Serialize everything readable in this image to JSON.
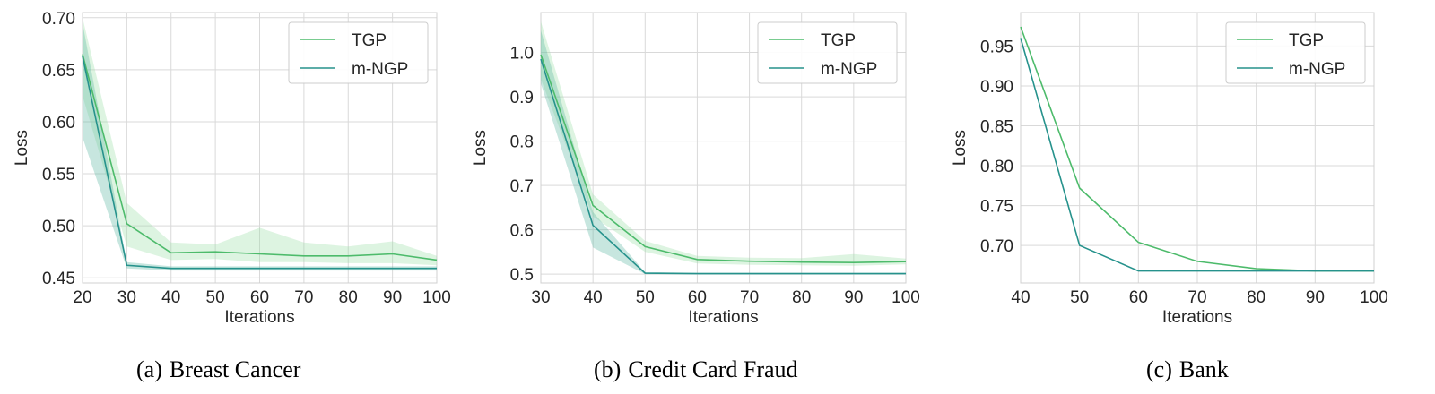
{
  "chart_data": [
    {
      "type": "line",
      "caption_label": "(a)",
      "caption_text": "Breast Cancer",
      "xlabel": "Iterations",
      "ylabel": "Loss",
      "xlim": [
        20,
        100
      ],
      "ylim": [
        0.445,
        0.705
      ],
      "xticks": [
        20,
        30,
        40,
        50,
        60,
        70,
        80,
        90,
        100
      ],
      "yticks": [
        0.45,
        0.5,
        0.55,
        0.6,
        0.65,
        0.7
      ],
      "ytick_labels": [
        "0.45",
        "0.50",
        "0.55",
        "0.60",
        "0.65",
        "0.70"
      ],
      "grid": true,
      "legend_position": "top-right",
      "series": [
        {
          "name": "TGP",
          "color": "#4dbb6b",
          "band_color": "#9fe0a8",
          "x": [
            20,
            30,
            40,
            50,
            60,
            70,
            80,
            90,
            100
          ],
          "y": [
            0.665,
            0.502,
            0.474,
            0.475,
            0.473,
            0.471,
            0.471,
            0.473,
            0.467
          ],
          "lower": [
            0.625,
            0.48,
            0.467,
            0.468,
            0.465,
            0.465,
            0.464,
            0.464,
            0.462
          ],
          "upper": [
            0.7,
            0.522,
            0.484,
            0.482,
            0.498,
            0.484,
            0.48,
            0.485,
            0.471
          ]
        },
        {
          "name": "m-NGP",
          "color": "#26928c",
          "band_color": "#5fb7a4",
          "x": [
            20,
            30,
            40,
            50,
            60,
            70,
            80,
            90,
            100
          ],
          "y": [
            0.663,
            0.462,
            0.459,
            0.459,
            0.459,
            0.459,
            0.459,
            0.459,
            0.459
          ],
          "lower": [
            0.585,
            0.459,
            0.457,
            0.457,
            0.457,
            0.457,
            0.457,
            0.457,
            0.457
          ],
          "upper": [
            0.695,
            0.465,
            0.461,
            0.461,
            0.461,
            0.461,
            0.461,
            0.461,
            0.461
          ]
        }
      ]
    },
    {
      "type": "line",
      "caption_label": "(b)",
      "caption_text": "Credit Card Fraud",
      "xlabel": "Iterations",
      "ylabel": "Loss",
      "xlim": [
        30,
        100
      ],
      "ylim": [
        0.48,
        1.09
      ],
      "xticks": [
        30,
        40,
        50,
        60,
        70,
        80,
        90,
        100
      ],
      "yticks": [
        0.5,
        0.6,
        0.7,
        0.8,
        0.9,
        1.0
      ],
      "ytick_labels": [
        "0.5",
        "0.6",
        "0.7",
        "0.8",
        "0.9",
        "1.0"
      ],
      "grid": true,
      "legend_position": "top-right",
      "series": [
        {
          "name": "TGP",
          "color": "#4dbb6b",
          "band_color": "#9fe0a8",
          "x": [
            30,
            40,
            50,
            60,
            70,
            80,
            90,
            100
          ],
          "y": [
            0.995,
            0.655,
            0.562,
            0.533,
            0.529,
            0.527,
            0.526,
            0.528
          ],
          "lower": [
            0.94,
            0.63,
            0.55,
            0.524,
            0.521,
            0.52,
            0.519,
            0.522
          ],
          "upper": [
            1.07,
            0.68,
            0.575,
            0.541,
            0.537,
            0.536,
            0.545,
            0.535
          ]
        },
        {
          "name": "m-NGP",
          "color": "#26928c",
          "band_color": "#5fb7a4",
          "x": [
            30,
            40,
            50,
            60,
            70,
            80,
            90,
            100
          ],
          "y": [
            0.985,
            0.61,
            0.502,
            0.501,
            0.501,
            0.501,
            0.501,
            0.501
          ],
          "lower": [
            0.93,
            0.56,
            0.5,
            0.5,
            0.5,
            0.5,
            0.5,
            0.5
          ],
          "upper": [
            1.05,
            0.64,
            0.504,
            0.503,
            0.503,
            0.503,
            0.503,
            0.503
          ]
        }
      ]
    },
    {
      "type": "line",
      "caption_label": "(c)",
      "caption_text": "Bank",
      "xlabel": "Iterations",
      "ylabel": "Loss",
      "xlim": [
        40,
        100
      ],
      "ylim": [
        0.653,
        0.992
      ],
      "xticks": [
        40,
        50,
        60,
        70,
        80,
        90,
        100
      ],
      "yticks": [
        0.7,
        0.75,
        0.8,
        0.85,
        0.9,
        0.95
      ],
      "ytick_labels": [
        "0.70",
        "0.75",
        "0.80",
        "0.85",
        "0.90",
        "0.95"
      ],
      "grid": true,
      "legend_position": "top-right",
      "series": [
        {
          "name": "TGP",
          "color": "#4dbb6b",
          "band_color": "#9fe0a8",
          "x": [
            40,
            50,
            60,
            70,
            80,
            90,
            100
          ],
          "y": [
            0.974,
            0.772,
            0.704,
            0.68,
            0.671,
            0.668,
            0.668
          ]
        },
        {
          "name": "m-NGP",
          "color": "#26928c",
          "band_color": "#5fb7a4",
          "x": [
            40,
            50,
            60,
            70,
            80,
            90,
            100
          ],
          "y": [
            0.96,
            0.7,
            0.668,
            0.668,
            0.668,
            0.668,
            0.668
          ]
        }
      ]
    }
  ]
}
